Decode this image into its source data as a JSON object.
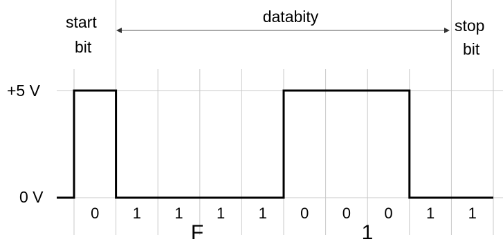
{
  "labels": {
    "start_line1": "start",
    "start_line2": "bit",
    "data": "databity",
    "stop_line1": "stop",
    "stop_line2": "bit",
    "high_voltage": "+5 V",
    "low_voltage": "0 V"
  },
  "bits": [
    "0",
    "1",
    "1",
    "1",
    "1",
    "0",
    "0",
    "0",
    "1",
    "1"
  ],
  "signal_levels": [
    1,
    0,
    0,
    0,
    0,
    1,
    1,
    1,
    0,
    0
  ],
  "nibbles": [
    "F",
    "1"
  ],
  "colors": {
    "signal": "#000000",
    "grid": "#c8c8c8",
    "arrow": "#555555"
  }
}
